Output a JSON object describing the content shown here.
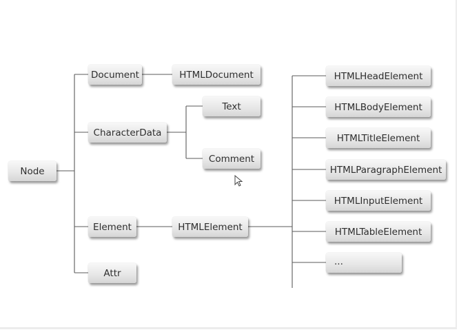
{
  "nodes": {
    "node": "Node",
    "document": "Document",
    "html_document": "HTMLDocument",
    "character_data": "CharacterData",
    "text": "Text",
    "comment": "Comment",
    "element": "Element",
    "html_element": "HTMLElement",
    "attr": "Attr",
    "html_head_element": "HTMLHeadElement",
    "html_body_element": "HTMLBodyElement",
    "html_title_element": "HTMLTitleElement",
    "html_paragraph_element": "HTMLParagraphElement",
    "html_input_element": "HTMLInputElement",
    "html_table_element": "HTMLTableElement",
    "more": "..."
  },
  "colors": {
    "connector": "#5a5a5a",
    "box_top": "#f8f8f8",
    "box_bottom": "#d6d6d6",
    "text": "#2e2e2e"
  },
  "cursor_icon": "mouse-pointer-icon"
}
